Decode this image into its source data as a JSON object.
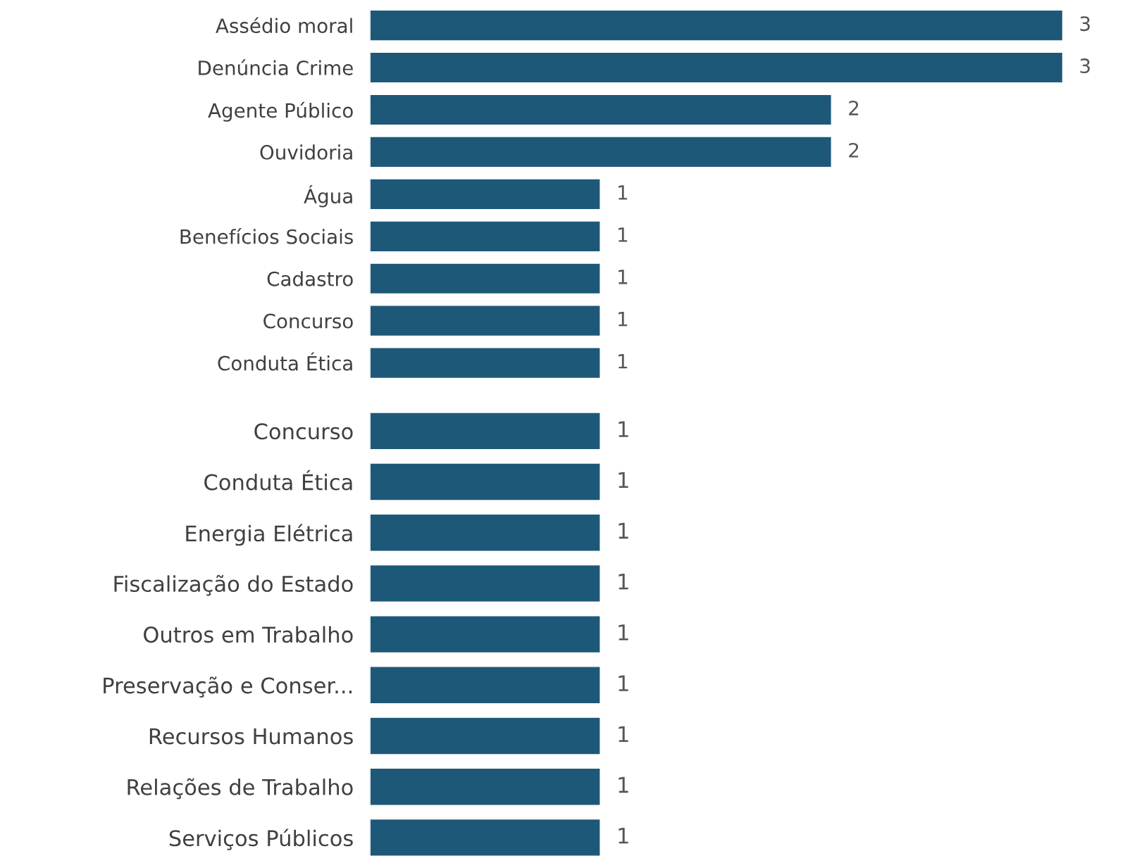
{
  "chart_data": [
    {
      "type": "bar",
      "orientation": "horizontal",
      "color": "#1e5878",
      "data_labels": true,
      "categories": [
        "Assédio moral",
        "Denúncia Crime",
        "Agente Público",
        "Ouvidoria",
        "Água",
        "Benefícios Sociais",
        "Cadastro",
        "Concurso",
        "Conduta Ética"
      ],
      "values": [
        3,
        3,
        2,
        2,
        1,
        1,
        1,
        1,
        1
      ]
    },
    {
      "type": "bar",
      "orientation": "horizontal",
      "color": "#1e5878",
      "data_labels": true,
      "categories": [
        "Concurso",
        "Conduta Ética",
        "Energia Elétrica",
        "Fiscalização do Estado",
        "Outros em Trabalho",
        "Preservação e Conser...",
        "Recursos Humanos",
        "Relações de Trabalho",
        "Serviços Públicos"
      ],
      "values": [
        1,
        1,
        1,
        1,
        1,
        1,
        1,
        1,
        1
      ]
    }
  ]
}
